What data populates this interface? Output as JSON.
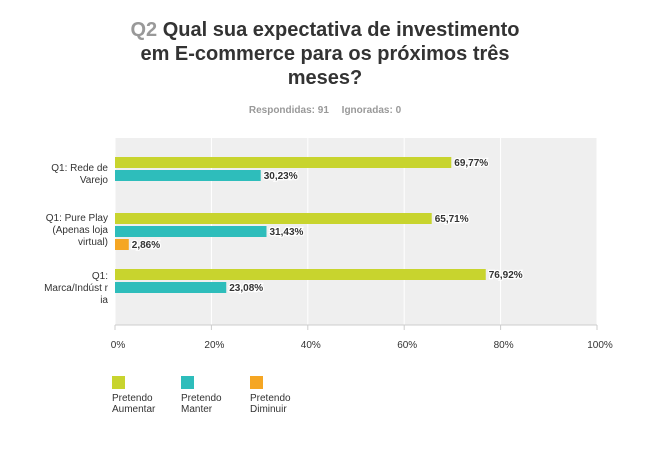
{
  "question": {
    "number": "Q2",
    "text": "Qual sua expectativa de investimento em E-commerce para os próximos três meses?"
  },
  "stats": {
    "answered": "Respondidas: 91",
    "skipped": "Ignoradas: 0"
  },
  "chart_data": {
    "type": "bar",
    "orientation": "horizontal",
    "title": "Qual sua expectativa de investimento em E-commerce para os próximos três meses?",
    "categories": [
      "Q1: Rede de Varejo",
      "Q1: Pure Play (Apenas loja virtual)",
      "Q1: Marca/Indústria"
    ],
    "category_lines": [
      [
        "Q1: Rede de",
        "Varejo"
      ],
      [
        "Q1: Pure Play",
        "(Apenas loja",
        "virtual)"
      ],
      [
        "Q1:",
        "Marca/Indúst r",
        "ia"
      ]
    ],
    "series": [
      {
        "name": "Pretendo Aumentar",
        "legend_lines": [
          "Pretendo",
          "Aumentar"
        ],
        "color": "#c8d42e",
        "values": [
          69.77,
          65.71,
          76.92
        ],
        "labels": [
          "69,77%",
          "65,71%",
          "76,92%"
        ]
      },
      {
        "name": "Pretendo Manter",
        "legend_lines": [
          "Pretendo",
          "Manter"
        ],
        "color": "#2ebdbb",
        "values": [
          30.23,
          31.43,
          23.08
        ],
        "labels": [
          "30,23%",
          "31,43%",
          "23,08%"
        ]
      },
      {
        "name": "Pretendo Diminuir",
        "legend_lines": [
          "Pretendo",
          "Diminuir"
        ],
        "color": "#f5a623",
        "values": [
          0,
          2.86,
          0
        ],
        "labels": [
          "",
          "2,86%",
          ""
        ]
      }
    ],
    "xlim": [
      0,
      100
    ],
    "xticks": [
      0,
      20,
      40,
      60,
      80,
      100
    ],
    "xtick_labels": [
      "0%",
      "20%",
      "40%",
      "60%",
      "80%",
      "100%"
    ],
    "grid": true,
    "legend_position": "bottom-left",
    "plot_background": "#efefef"
  }
}
